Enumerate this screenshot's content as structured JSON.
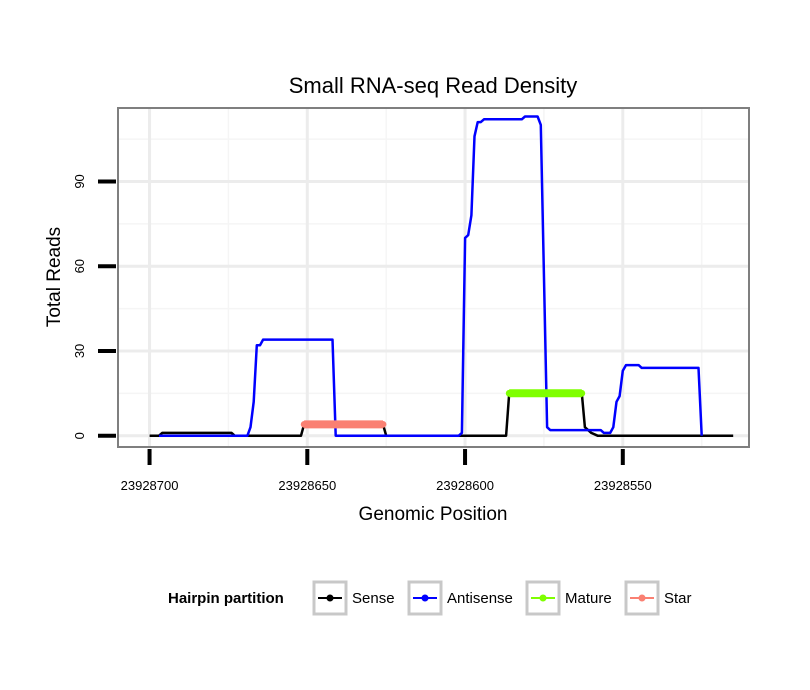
{
  "chart_data": {
    "type": "line",
    "title": "Small RNA-seq Read Density",
    "xlabel": "Genomic Position",
    "ylabel": "Total Reads",
    "xlim": [
      23928710,
      23928510
    ],
    "ylim": [
      -4,
      116
    ],
    "x_reversed": true,
    "grid": true,
    "x_ticks": [
      23928700,
      23928650,
      23928600,
      23928550
    ],
    "x_tick_labels": [
      "23928700",
      "23928650",
      "23928600",
      "23928550"
    ],
    "y_ticks": [
      0,
      30,
      60,
      90
    ],
    "y_tick_labels": [
      "0",
      "30",
      "60",
      "90"
    ],
    "legend": {
      "title": "Hairpin partition",
      "position": "bottom",
      "entries": [
        {
          "label": "Sense",
          "color": "#000000"
        },
        {
          "label": "Antisense",
          "color": "#0000ff"
        },
        {
          "label": "Mature",
          "color": "#7fff00"
        },
        {
          "label": "Star",
          "color": "#fa8072"
        }
      ]
    },
    "series": [
      {
        "name": "Sense",
        "color": "#000000",
        "points": [
          [
            23928700,
            0
          ],
          [
            23928697,
            0
          ],
          [
            23928696,
            1
          ],
          [
            23928674,
            1
          ],
          [
            23928673,
            0
          ],
          [
            23928652,
            0
          ],
          [
            23928651,
            4
          ],
          [
            23928626,
            4
          ],
          [
            23928625,
            0
          ],
          [
            23928587,
            0
          ],
          [
            23928586,
            15
          ],
          [
            23928563,
            15
          ],
          [
            23928562,
            3
          ],
          [
            23928560,
            1
          ],
          [
            23928558,
            0
          ],
          [
            23928515,
            0
          ]
        ]
      },
      {
        "name": "Antisense",
        "color": "#0000ff",
        "points": [
          [
            23928697,
            0
          ],
          [
            23928669,
            0
          ],
          [
            23928668,
            3
          ],
          [
            23928667,
            12
          ],
          [
            23928666,
            32
          ],
          [
            23928665,
            32
          ],
          [
            23928664,
            34
          ],
          [
            23928642,
            34
          ],
          [
            23928641,
            0
          ],
          [
            23928602,
            0
          ],
          [
            23928601,
            1
          ],
          [
            23928600,
            70
          ],
          [
            23928599,
            71
          ],
          [
            23928598,
            78
          ],
          [
            23928597,
            106
          ],
          [
            23928596,
            111
          ],
          [
            23928595,
            111
          ],
          [
            23928594,
            112
          ],
          [
            23928582,
            112
          ],
          [
            23928581,
            113
          ],
          [
            23928577,
            113
          ],
          [
            23928576,
            110
          ],
          [
            23928574,
            3
          ],
          [
            23928573,
            2
          ],
          [
            23928557,
            2
          ],
          [
            23928556,
            1
          ],
          [
            23928554,
            1
          ],
          [
            23928553,
            3
          ],
          [
            23928552,
            12
          ],
          [
            23928551,
            14
          ],
          [
            23928550,
            23
          ],
          [
            23928549,
            25
          ],
          [
            23928545,
            25
          ],
          [
            23928544,
            24
          ],
          [
            23928526,
            24
          ],
          [
            23928525,
            0
          ]
        ]
      },
      {
        "name": "Mature",
        "color": "#7fff00",
        "points": [
          [
            23928586,
            15
          ],
          [
            23928563,
            15
          ]
        ]
      },
      {
        "name": "Star",
        "color": "#fa8072",
        "points": [
          [
            23928651,
            4
          ],
          [
            23928626,
            4
          ]
        ]
      }
    ]
  }
}
